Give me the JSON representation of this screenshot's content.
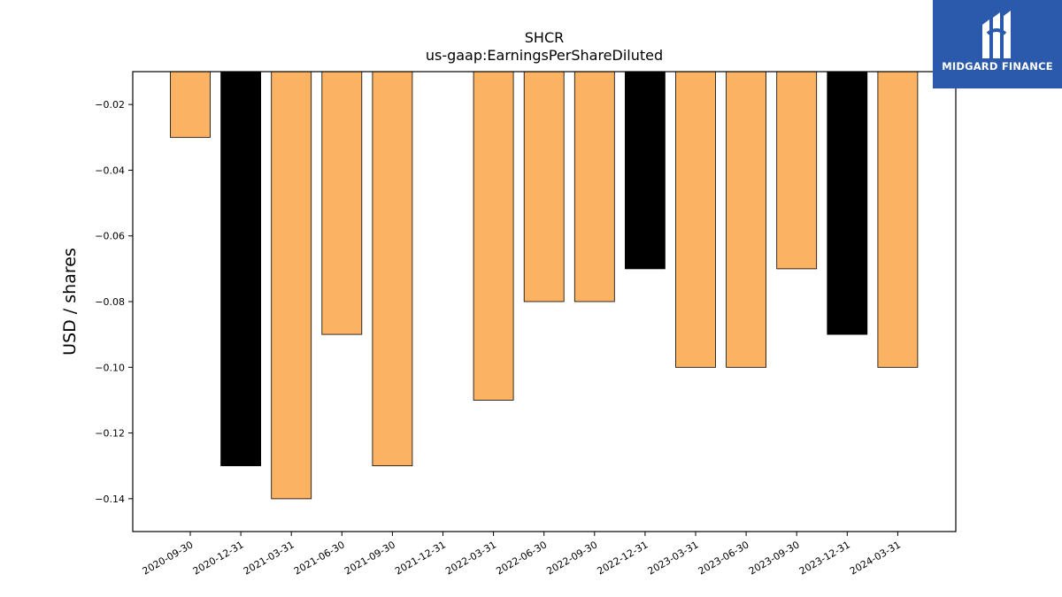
{
  "chart_data": {
    "type": "bar",
    "title": "SHCR",
    "subtitle": "us-gaap:EarningsPerShareDiluted",
    "xlabel": "",
    "ylabel": "USD / shares",
    "ylim": [
      -0.15,
      -0.01
    ],
    "yticks": [
      -0.02,
      -0.04,
      -0.06,
      -0.08,
      -0.1,
      -0.12,
      -0.14
    ],
    "ytick_labels": [
      "−0.02",
      "−0.04",
      "−0.06",
      "−0.08",
      "−0.10",
      "−0.12",
      "−0.14"
    ],
    "categories": [
      "2020-09-30",
      "2020-12-31",
      "2021-03-31",
      "2021-06-30",
      "2021-09-30",
      "2021-12-31",
      "2022-03-31",
      "2022-06-30",
      "2022-09-30",
      "2022-12-31",
      "2023-03-31",
      "2023-06-30",
      "2023-09-30",
      "2023-12-31",
      "2024-03-31"
    ],
    "values": [
      -0.03,
      -0.13,
      -0.14,
      -0.09,
      -0.13,
      null,
      -0.11,
      -0.08,
      -0.08,
      -0.07,
      -0.1,
      -0.1,
      -0.07,
      -0.09,
      -0.1
    ],
    "bar_colors": [
      "#fbb263",
      "#000000",
      "#fbb263",
      "#fbb263",
      "#fbb263",
      "#fbb263",
      "#fbb263",
      "#fbb263",
      "#fbb263",
      "#000000",
      "#fbb263",
      "#fbb263",
      "#fbb263",
      "#000000",
      "#fbb263"
    ],
    "grid": false,
    "legend": "none"
  },
  "logo": {
    "text": "MIDGARD FINANCE",
    "background": "#2b5aad"
  }
}
